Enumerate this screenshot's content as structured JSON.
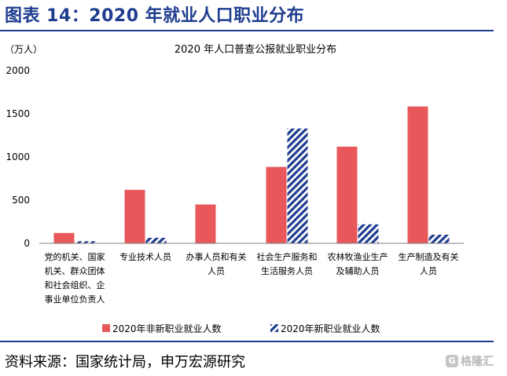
{
  "figure_title": "图表 14：2020 年就业人口职业分布",
  "source_note": "资料来源：国家统计局，申万宏源研究",
  "watermark_text": "格隆汇",
  "watermark_badge": "G",
  "colors": {
    "accent_blue": "#1f3d8f",
    "series_non_new": "#e8585b",
    "series_new": "#1f3d8f"
  },
  "chart_data": {
    "type": "bar",
    "title": "2020 年人口普查公报就业职业分布",
    "ylabel": "（万人）",
    "ylim": [
      0,
      2000
    ],
    "yticks": [
      0,
      500,
      1000,
      1500,
      2000
    ],
    "grid": false,
    "legend_position": "bottom",
    "categories": [
      [
        "党的机关、国家",
        "机关、群众团体",
        "和社会组织、企",
        "事业单位负责人"
      ],
      [
        "专业技术人员"
      ],
      [
        "办事人员和有关",
        "人员"
      ],
      [
        "社会生产服务和",
        "生活服务人员"
      ],
      [
        "农林牧渔业生产",
        "及辅助人员"
      ],
      [
        "生产制造及有关",
        "人员"
      ]
    ],
    "series": [
      {
        "name": "2020年非新职业就业人数",
        "values": [
          120,
          620,
          450,
          885,
          1120,
          1585
        ],
        "style": "solid"
      },
      {
        "name": "2020年新职业就业人数",
        "values": [
          25,
          65,
          0,
          1330,
          220,
          100
        ],
        "style": "hatched"
      }
    ]
  }
}
